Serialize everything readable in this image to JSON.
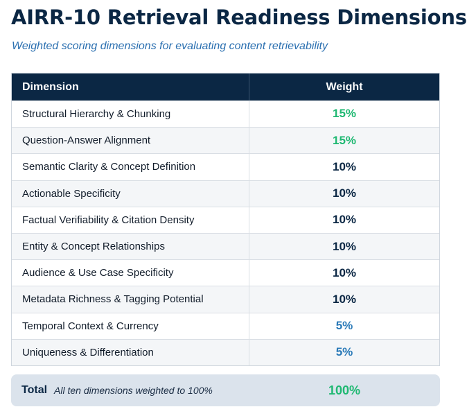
{
  "title": "AIRR-10 Retrieval Readiness Dimensions",
  "subtitle": "Weighted scoring dimensions for evaluating content retrievability",
  "table": {
    "headers": {
      "dimension": "Dimension",
      "weight": "Weight"
    },
    "rows": [
      {
        "dimension": "Structural Hierarchy & Chunking",
        "weight": "15%",
        "color": "#1fb872"
      },
      {
        "dimension": "Question-Answer Alignment",
        "weight": "15%",
        "color": "#1fb872"
      },
      {
        "dimension": "Semantic Clarity & Concept Definition",
        "weight": "10%",
        "color": "#0b2744"
      },
      {
        "dimension": "Actionable Specificity",
        "weight": "10%",
        "color": "#0b2744"
      },
      {
        "dimension": "Factual Verifiability & Citation Density",
        "weight": "10%",
        "color": "#0b2744"
      },
      {
        "dimension": "Entity & Concept Relationships",
        "weight": "10%",
        "color": "#0b2744"
      },
      {
        "dimension": "Audience & Use Case Specificity",
        "weight": "10%",
        "color": "#0b2744"
      },
      {
        "dimension": "Metadata Richness & Tagging Potential",
        "weight": "10%",
        "color": "#0b2744"
      },
      {
        "dimension": "Temporal Context & Currency",
        "weight": "5%",
        "color": "#2a7ab8"
      },
      {
        "dimension": "Uniqueness & Differentiation",
        "weight": "5%",
        "color": "#2a7ab8"
      }
    ]
  },
  "total": {
    "label": "Total",
    "note": "All ten dimensions weighted to 100%",
    "value": "100%",
    "color": "#1fb872"
  }
}
